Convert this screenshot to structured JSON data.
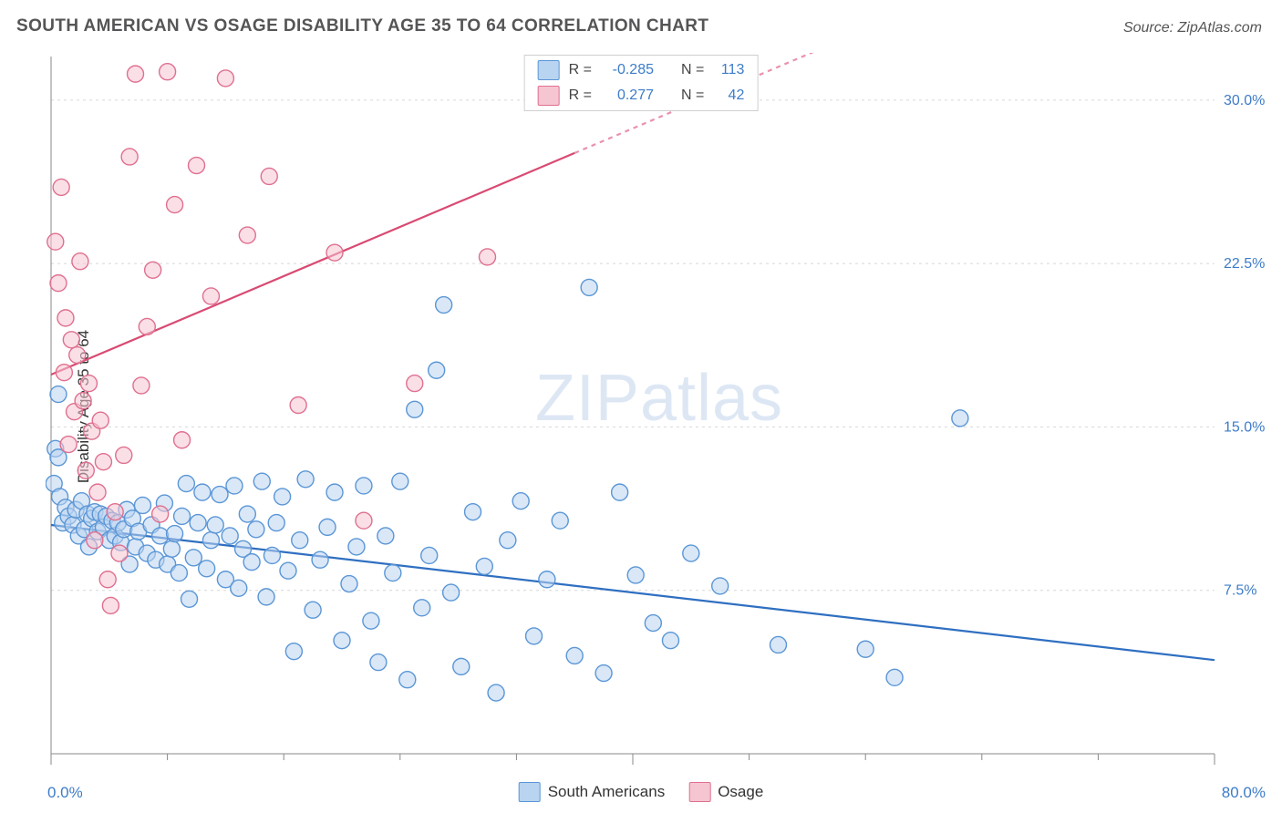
{
  "title": "SOUTH AMERICAN VS OSAGE DISABILITY AGE 35 TO 64 CORRELATION CHART",
  "source": "Source: ZipAtlas.com",
  "ylabel": "Disability Age 35 to 64",
  "watermark": "ZIPatlas",
  "chart": {
    "type": "scatter",
    "xmin": 0.0,
    "xmax": 80.0,
    "ymin": 0.0,
    "ymax": 32.0,
    "grid_y": [
      7.5,
      15.0,
      22.5,
      30.0
    ],
    "grid_y_labels": [
      "7.5%",
      "15.0%",
      "22.5%",
      "30.0%"
    ],
    "xtick_major": [
      0,
      40,
      80
    ],
    "xtick_minor": [
      8,
      16,
      24,
      32,
      48,
      56,
      64,
      72
    ],
    "xstart_label": "0.0%",
    "xend_label": "80.0%",
    "background_color": "#ffffff",
    "grid_color": "#d7d7d7",
    "axis_color": "#888888",
    "label_color": "#3d7cc9",
    "marker_radius": 9,
    "marker_stroke_width": 1.4,
    "series": [
      {
        "name": "South Americans",
        "fill": "#b9d4f0",
        "stroke": "#5a96d6",
        "fill_opacity": 0.55,
        "r_value": "-0.285",
        "n_value": "113",
        "trend": {
          "y_at_xmin": 10.5,
          "y_at_xmax": 4.3,
          "stroke": "#2f6fc1",
          "width": 2.2,
          "dash_after_x": null
        },
        "points": [
          [
            0.2,
            12.4
          ],
          [
            0.3,
            14.0
          ],
          [
            0.5,
            16.5
          ],
          [
            0.5,
            13.6
          ],
          [
            0.6,
            11.8
          ],
          [
            0.8,
            10.6
          ],
          [
            1.0,
            11.3
          ],
          [
            1.2,
            10.9
          ],
          [
            1.5,
            10.5
          ],
          [
            1.7,
            11.2
          ],
          [
            1.9,
            10.0
          ],
          [
            2.1,
            11.6
          ],
          [
            2.3,
            10.3
          ],
          [
            2.5,
            11.0
          ],
          [
            2.6,
            9.5
          ],
          [
            2.8,
            10.8
          ],
          [
            3.0,
            11.1
          ],
          [
            3.2,
            10.2
          ],
          [
            3.4,
            11.0
          ],
          [
            3.6,
            10.4
          ],
          [
            3.8,
            10.9
          ],
          [
            4.0,
            9.8
          ],
          [
            4.2,
            10.7
          ],
          [
            4.4,
            10.0
          ],
          [
            4.6,
            10.6
          ],
          [
            4.8,
            9.7
          ],
          [
            5.0,
            10.3
          ],
          [
            5.2,
            11.2
          ],
          [
            5.4,
            8.7
          ],
          [
            5.6,
            10.8
          ],
          [
            5.8,
            9.5
          ],
          [
            6.0,
            10.2
          ],
          [
            6.3,
            11.4
          ],
          [
            6.6,
            9.2
          ],
          [
            6.9,
            10.5
          ],
          [
            7.2,
            8.9
          ],
          [
            7.5,
            10.0
          ],
          [
            7.8,
            11.5
          ],
          [
            8.0,
            8.7
          ],
          [
            8.3,
            9.4
          ],
          [
            8.5,
            10.1
          ],
          [
            8.8,
            8.3
          ],
          [
            9.0,
            10.9
          ],
          [
            9.3,
            12.4
          ],
          [
            9.5,
            7.1
          ],
          [
            9.8,
            9.0
          ],
          [
            10.1,
            10.6
          ],
          [
            10.4,
            12.0
          ],
          [
            10.7,
            8.5
          ],
          [
            11.0,
            9.8
          ],
          [
            11.3,
            10.5
          ],
          [
            11.6,
            11.9
          ],
          [
            12.0,
            8.0
          ],
          [
            12.3,
            10.0
          ],
          [
            12.6,
            12.3
          ],
          [
            12.9,
            7.6
          ],
          [
            13.2,
            9.4
          ],
          [
            13.5,
            11.0
          ],
          [
            13.8,
            8.8
          ],
          [
            14.1,
            10.3
          ],
          [
            14.5,
            12.5
          ],
          [
            14.8,
            7.2
          ],
          [
            15.2,
            9.1
          ],
          [
            15.5,
            10.6
          ],
          [
            15.9,
            11.8
          ],
          [
            16.3,
            8.4
          ],
          [
            16.7,
            4.7
          ],
          [
            17.1,
            9.8
          ],
          [
            17.5,
            12.6
          ],
          [
            18.0,
            6.6
          ],
          [
            18.5,
            8.9
          ],
          [
            19.0,
            10.4
          ],
          [
            19.5,
            12.0
          ],
          [
            20.0,
            5.2
          ],
          [
            20.5,
            7.8
          ],
          [
            21.0,
            9.5
          ],
          [
            21.5,
            12.3
          ],
          [
            22.0,
            6.1
          ],
          [
            22.5,
            4.2
          ],
          [
            23.0,
            10.0
          ],
          [
            23.5,
            8.3
          ],
          [
            24.0,
            12.5
          ],
          [
            24.5,
            3.4
          ],
          [
            25.0,
            15.8
          ],
          [
            25.5,
            6.7
          ],
          [
            26.0,
            9.1
          ],
          [
            26.5,
            17.6
          ],
          [
            27.0,
            20.6
          ],
          [
            27.5,
            7.4
          ],
          [
            28.2,
            4.0
          ],
          [
            29.0,
            11.1
          ],
          [
            29.8,
            8.6
          ],
          [
            30.6,
            2.8
          ],
          [
            31.4,
            9.8
          ],
          [
            32.3,
            11.6
          ],
          [
            33.2,
            5.4
          ],
          [
            34.1,
            8.0
          ],
          [
            35.0,
            10.7
          ],
          [
            36.0,
            4.5
          ],
          [
            37.0,
            21.4
          ],
          [
            38.0,
            3.7
          ],
          [
            39.1,
            12.0
          ],
          [
            40.2,
            8.2
          ],
          [
            41.4,
            6.0
          ],
          [
            42.6,
            5.2
          ],
          [
            44.0,
            9.2
          ],
          [
            46.0,
            7.7
          ],
          [
            50.0,
            5.0
          ],
          [
            56.0,
            4.8
          ],
          [
            58.0,
            3.5
          ],
          [
            62.5,
            15.4
          ]
        ]
      },
      {
        "name": "Osage",
        "fill": "#f6c5d2",
        "stroke": "#e06f8f",
        "fill_opacity": 0.55,
        "r_value": "0.277",
        "n_value": "42",
        "trend": {
          "y_at_xmin": 17.4,
          "y_at_xmax": 40.0,
          "stroke": "#d94a73",
          "width": 2.2,
          "dash_after_x": 36.0
        },
        "points": [
          [
            0.3,
            23.5
          ],
          [
            0.5,
            21.6
          ],
          [
            0.7,
            26.0
          ],
          [
            0.9,
            17.5
          ],
          [
            1.0,
            20.0
          ],
          [
            1.2,
            14.2
          ],
          [
            1.4,
            19.0
          ],
          [
            1.6,
            15.7
          ],
          [
            1.8,
            18.3
          ],
          [
            2.0,
            22.6
          ],
          [
            2.2,
            16.2
          ],
          [
            2.4,
            13.0
          ],
          [
            2.6,
            17.0
          ],
          [
            2.8,
            14.8
          ],
          [
            3.0,
            9.8
          ],
          [
            3.2,
            12.0
          ],
          [
            3.4,
            15.3
          ],
          [
            3.6,
            13.4
          ],
          [
            3.9,
            8.0
          ],
          [
            4.1,
            6.8
          ],
          [
            4.4,
            11.1
          ],
          [
            4.7,
            9.2
          ],
          [
            5.0,
            13.7
          ],
          [
            5.4,
            27.4
          ],
          [
            5.8,
            31.2
          ],
          [
            6.2,
            16.9
          ],
          [
            6.6,
            19.6
          ],
          [
            7.0,
            22.2
          ],
          [
            7.5,
            11.0
          ],
          [
            8.0,
            31.3
          ],
          [
            8.5,
            25.2
          ],
          [
            9.0,
            14.4
          ],
          [
            10.0,
            27.0
          ],
          [
            11.0,
            21.0
          ],
          [
            12.0,
            31.0
          ],
          [
            13.5,
            23.8
          ],
          [
            15.0,
            26.5
          ],
          [
            17.0,
            16.0
          ],
          [
            19.5,
            23.0
          ],
          [
            21.5,
            10.7
          ],
          [
            25.0,
            17.0
          ],
          [
            30.0,
            22.8
          ]
        ]
      }
    ]
  },
  "legend": {
    "r_label": "R =",
    "n_label": "N =",
    "series1_label": "South Americans",
    "series2_label": "Osage"
  }
}
